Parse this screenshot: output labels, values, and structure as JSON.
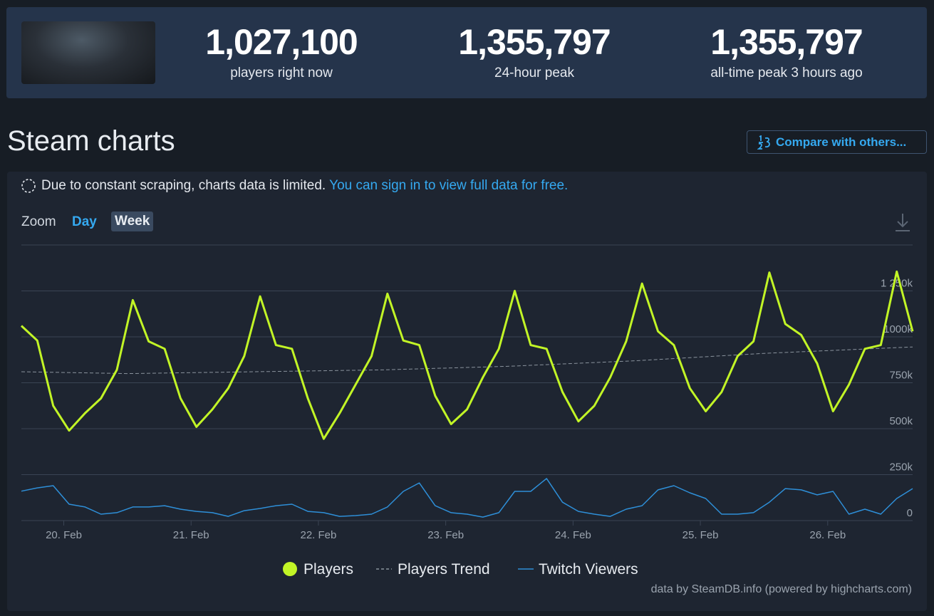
{
  "header": {
    "stats": [
      {
        "value": "1,027,100",
        "label": "players right now"
      },
      {
        "value": "1,355,797",
        "label": "24-hour peak"
      },
      {
        "value": "1,355,797",
        "label": "all-time peak 3 hours ago"
      }
    ]
  },
  "section_title": "Steam charts",
  "compare_button": "Compare with others...",
  "notice": {
    "text": "Due to constant scraping, charts data is limited.",
    "link": "You can sign in to view full data for free."
  },
  "zoom": {
    "label": "Zoom",
    "options": [
      "Day",
      "Week"
    ]
  },
  "chart_data": {
    "type": "line",
    "x": [
      19.667,
      19.792,
      19.917,
      20.042,
      20.167,
      20.292,
      20.417,
      20.542,
      20.667,
      20.792,
      20.917,
      21.042,
      21.167,
      21.292,
      21.417,
      21.542,
      21.667,
      21.792,
      21.917,
      22.042,
      22.167,
      22.292,
      22.417,
      22.542,
      22.667,
      22.792,
      22.917,
      23.042,
      23.167,
      23.292,
      23.417,
      23.542,
      23.667,
      23.792,
      23.917,
      24.042,
      24.167,
      24.292,
      24.417,
      24.542,
      24.667,
      24.792,
      24.917,
      25.042,
      25.167,
      25.292,
      25.417,
      25.542,
      25.667,
      25.792,
      25.917,
      26.042,
      26.167,
      26.292,
      26.417,
      26.542,
      26.667
    ],
    "xlim": [
      19.667,
      26.667
    ],
    "xticks": [
      {
        "value": 20,
        "label": "20. Feb"
      },
      {
        "value": 21,
        "label": "21. Feb"
      },
      {
        "value": 22,
        "label": "22. Feb"
      },
      {
        "value": 23,
        "label": "23. Feb"
      },
      {
        "value": 24,
        "label": "24. Feb"
      },
      {
        "value": 25,
        "label": "25. Feb"
      },
      {
        "value": 26,
        "label": "26. Feb"
      }
    ],
    "ylim": [
      0,
      1500000
    ],
    "yticks": [
      0,
      {
        "value": 250000,
        "label": "250k"
      },
      {
        "value": 500000,
        "label": "500k"
      },
      {
        "value": 750000,
        "label": "750k"
      },
      {
        "value": 1000000,
        "label": "1000k"
      },
      {
        "value": 1250000,
        "label": "1 250k"
      }
    ],
    "grid": true,
    "series": [
      {
        "name": "Players",
        "color": "#c2f526",
        "values": [
          1060000,
          980000,
          625000,
          490000,
          585000,
          665000,
          820000,
          1200000,
          975000,
          935000,
          665000,
          510000,
          605000,
          720000,
          895000,
          1220000,
          955000,
          935000,
          665000,
          445000,
          585000,
          740000,
          895000,
          1235000,
          980000,
          955000,
          680000,
          525000,
          605000,
          780000,
          935000,
          1250000,
          955000,
          935000,
          700000,
          540000,
          625000,
          780000,
          975000,
          1290000,
          1030000,
          955000,
          720000,
          595000,
          700000,
          895000,
          975000,
          1350000,
          1070000,
          1010000,
          855000,
          595000,
          740000,
          935000,
          955000,
          1355000,
          1030000
        ]
      },
      {
        "name": "Players Trend",
        "color": "#8a939d",
        "dashed": true,
        "x": [
          19.667,
          20.5,
          21.5,
          22.5,
          23.5,
          24.5,
          25.5,
          26.667
        ],
        "values": [
          810000,
          800000,
          810000,
          820000,
          840000,
          870000,
          910000,
          945000
        ]
      },
      {
        "name": "Twitch Viewers",
        "color": "#2e8fd8",
        "values": [
          160000,
          178000,
          190000,
          89000,
          74000,
          35000,
          43000,
          74000,
          74000,
          81000,
          62000,
          50000,
          43000,
          23000,
          54000,
          66000,
          81000,
          89000,
          50000,
          43000,
          23000,
          27000,
          35000,
          74000,
          159000,
          205000,
          81000,
          43000,
          35000,
          19000,
          43000,
          159000,
          159000,
          229000,
          100000,
          50000,
          35000,
          23000,
          62000,
          81000,
          167000,
          190000,
          151000,
          120000,
          35000,
          35000,
          43000,
          100000,
          174000,
          167000,
          140000,
          159000,
          35000,
          62000,
          35000,
          120000,
          174000
        ]
      }
    ]
  },
  "credits": "data by SteamDB.info (powered by highcharts.com)"
}
